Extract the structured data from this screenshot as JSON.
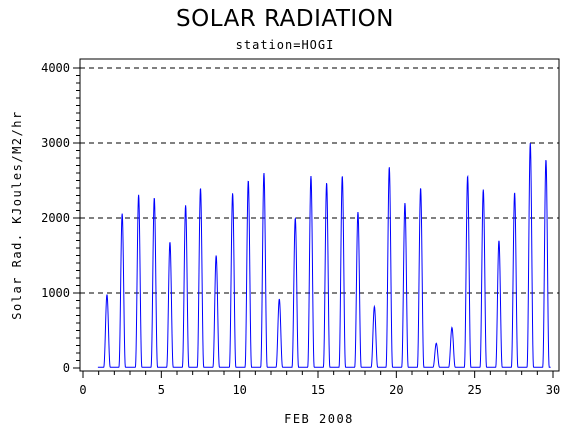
{
  "chart_data": {
    "type": "line",
    "title": "SOLAR RADIATION",
    "subtitle": "station=HOGI",
    "xlabel": "FEB 2008",
    "ylabel": "Solar Rad. KJoules/M2/hr",
    "xlim": [
      0,
      30
    ],
    "ylim": [
      0,
      4000
    ],
    "x_ticks": [
      0,
      5,
      10,
      15,
      20,
      25,
      30
    ],
    "y_ticks": [
      0,
      1000,
      2000,
      3000,
      4000
    ],
    "y_tick_labels": [
      "0",
      "1000",
      "2000",
      "3000",
      "4000"
    ],
    "grid": "horizontal-dashed",
    "line_color": "#0000ff",
    "daily_peak_times": [
      1.53,
      2.5,
      3.55,
      4.55,
      5.55,
      6.55,
      7.5,
      8.5,
      9.55,
      10.55,
      11.55,
      12.53,
      13.55,
      14.55,
      15.55,
      16.55,
      17.55,
      18.6,
      19.55,
      20.55,
      21.55,
      22.55,
      23.55,
      24.55,
      25.55,
      26.55,
      27.55,
      28.55,
      29.55
    ],
    "daily_peak_values": [
      980,
      2060,
      2310,
      2270,
      1680,
      2170,
      2400,
      1500,
      2330,
      2500,
      2600,
      920,
      2000,
      2560,
      2470,
      2560,
      2080,
      820,
      2680,
      2200,
      2400,
      330,
      540,
      2560,
      2380,
      1700,
      2340,
      3000,
      2780
    ]
  }
}
